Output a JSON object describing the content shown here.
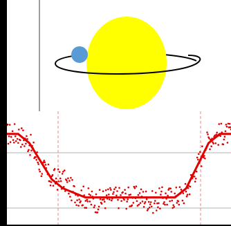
{
  "diagram": {
    "colors": {
      "background": "#000000",
      "panel": "#ffffff",
      "star": "#ffff00",
      "planet": "#5b9bd5",
      "orbit": "#000000",
      "divider": "#3c3c3c",
      "light_curve": "#e00000",
      "observations": "#e00000",
      "baseline_guides": "#c0c0c0",
      "event_markers": "#f08080"
    }
  },
  "chart_data": {
    "type": "scatter",
    "x": [
      0.0,
      0.05,
      0.1,
      0.15,
      0.2,
      0.25,
      0.3,
      0.35,
      0.4,
      0.45,
      0.5,
      0.55,
      0.6,
      0.65,
      0.7,
      0.75,
      0.8,
      0.85,
      0.9,
      0.95,
      1.0
    ],
    "series": [
      {
        "style": "scatter",
        "values": [
          1.0,
          1.0,
          0.98,
          0.93,
          0.9,
          0.9,
          0.87,
          0.86,
          0.85,
          0.86,
          0.86,
          0.86,
          0.86,
          0.85,
          0.86,
          0.86,
          0.87,
          0.93,
          0.99,
          1.0,
          1.0
        ]
      },
      {
        "style": "line",
        "values": [
          1.0,
          1.0,
          0.98,
          0.94,
          0.9,
          0.88,
          0.87,
          0.86,
          0.86,
          0.86,
          0.86,
          0.86,
          0.86,
          0.86,
          0.86,
          0.86,
          0.88,
          0.93,
          0.98,
          1.0,
          1.0
        ]
      }
    ],
    "ylim": [
      0.8,
      1.05
    ],
    "grid": false,
    "title": "",
    "xlabel": "",
    "ylabel": ""
  }
}
